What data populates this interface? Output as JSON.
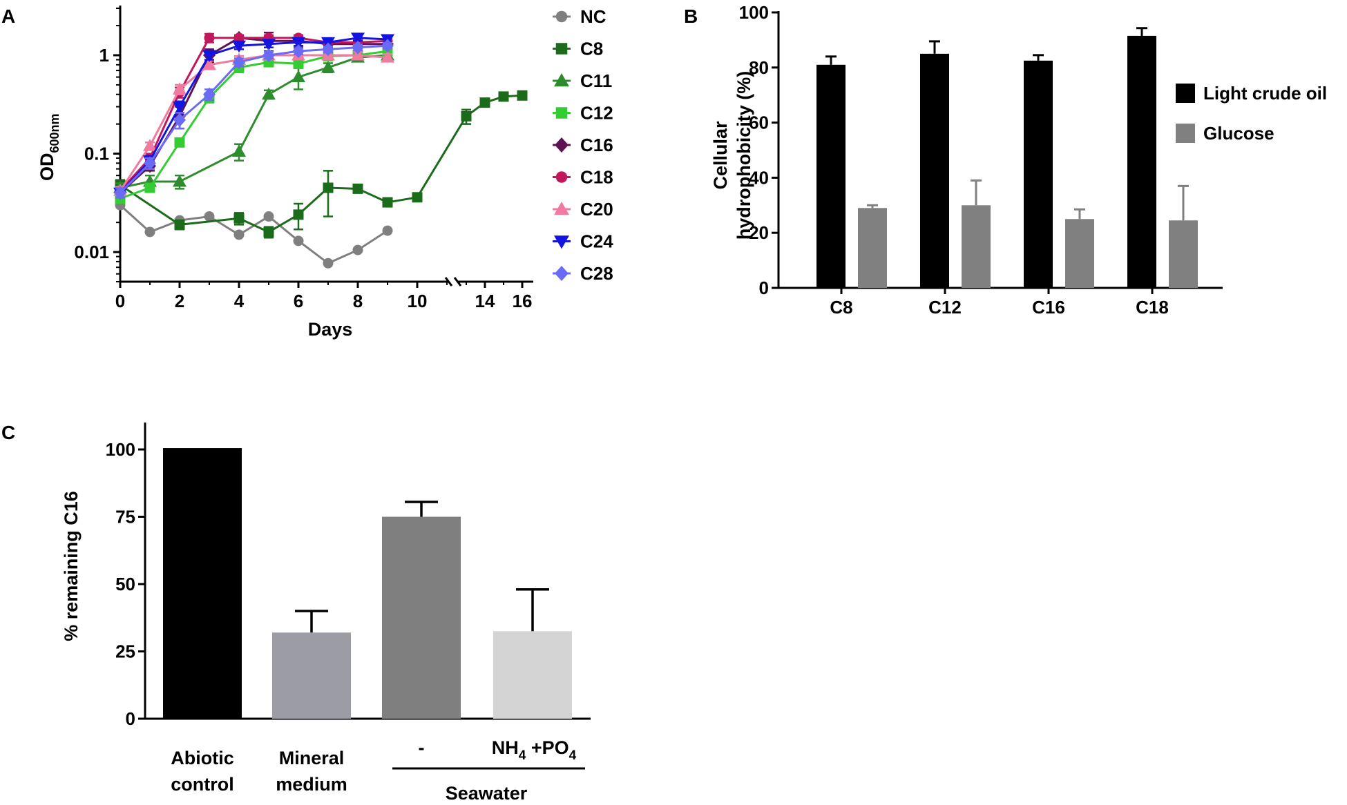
{
  "figure": {
    "panels": [
      "A",
      "B",
      "C"
    ]
  },
  "chart_data": [
    {
      "panel": "A",
      "type": "line",
      "yscale": "log",
      "ylabel": "OD",
      "ylabel_sub": "600nm",
      "xlabel": "Days",
      "ylim": [
        0.005,
        3.2
      ],
      "yticks": [
        0.01,
        0.1,
        1
      ],
      "ytick_labels": [
        "0.01",
        "0.1",
        "1"
      ],
      "x_ticks_left": [
        0,
        2,
        4,
        6,
        8,
        10
      ],
      "x_ticks_right": [
        14,
        16
      ],
      "x_break": [
        10.8,
        12.5
      ],
      "series": [
        {
          "name": "NC",
          "color": "#7f7f7f",
          "marker": "circle",
          "x": [
            0,
            1,
            2,
            3,
            4,
            5,
            6,
            7,
            8,
            9
          ],
          "y": [
            0.03,
            0.016,
            0.021,
            0.023,
            0.015,
            0.023,
            0.013,
            0.0077,
            0.0105,
            0.0165
          ],
          "err": [
            0,
            0,
            0,
            0,
            0,
            0,
            0,
            0,
            0,
            0
          ]
        },
        {
          "name": "C8",
          "color": "#1a6b1a",
          "marker": "square",
          "x": [
            0,
            2,
            4,
            5,
            6,
            7,
            8,
            9,
            10,
            13,
            14,
            15,
            16
          ],
          "y": [
            0.048,
            0.019,
            0.022,
            0.016,
            0.024,
            0.045,
            0.044,
            0.032,
            0.036,
            0.24,
            0.33,
            0.38,
            0.39
          ],
          "err": [
            0.006,
            0.002,
            0.003,
            0.002,
            0.007,
            0.022,
            0.004,
            0.002,
            0.002,
            0.04,
            0.03,
            0.02,
            0.02
          ]
        },
        {
          "name": "C11",
          "color": "#2e8b2e",
          "marker": "triangle-up",
          "x": [
            0,
            1,
            2,
            4,
            5,
            6,
            7,
            8,
            9
          ],
          "y": [
            0.045,
            0.052,
            0.052,
            0.105,
            0.4,
            0.6,
            0.75,
            0.95,
            1.0
          ],
          "err": [
            0.005,
            0.008,
            0.008,
            0.02,
            0.04,
            0.15,
            0.08,
            0.05,
            0.05
          ]
        },
        {
          "name": "C12",
          "color": "#33cc33",
          "marker": "square",
          "x": [
            0,
            1,
            2,
            3,
            4,
            5,
            6,
            7,
            8,
            9
          ],
          "y": [
            0.035,
            0.045,
            0.13,
            0.37,
            0.75,
            0.85,
            0.82,
            0.98,
            1.0,
            1.1
          ],
          "err": [
            0.003,
            0.004,
            0.01,
            0.04,
            0.08,
            0.08,
            0.08,
            0.08,
            0.08,
            0.1
          ]
        },
        {
          "name": "C16",
          "color": "#5e1452",
          "marker": "diamond",
          "x": [
            0,
            1,
            2,
            3,
            4,
            5,
            6,
            7,
            8,
            9
          ],
          "y": [
            0.04,
            0.075,
            0.24,
            1.0,
            1.5,
            1.4,
            1.4,
            1.3,
            1.3,
            1.3
          ],
          "err": [
            0.004,
            0.008,
            0.06,
            0.15,
            0.1,
            0.3,
            0.2,
            0.1,
            0.1,
            0.1
          ]
        },
        {
          "name": "C18",
          "color": "#c2185b",
          "marker": "circle",
          "x": [
            0,
            1,
            2,
            3,
            4,
            5,
            6,
            7,
            8,
            9
          ],
          "y": [
            0.042,
            0.09,
            0.42,
            1.5,
            1.5,
            1.5,
            1.5,
            1.35,
            1.35,
            1.4
          ],
          "err": [
            0.004,
            0.01,
            0.05,
            0.15,
            0.1,
            0.1,
            0.1,
            0.1,
            0.1,
            0.1
          ]
        },
        {
          "name": "C20",
          "color": "#f07aa0",
          "marker": "triangle-up",
          "x": [
            0,
            1,
            2,
            3,
            4,
            5,
            6,
            7,
            8,
            9
          ],
          "y": [
            0.042,
            0.12,
            0.45,
            0.8,
            0.9,
            1.0,
            1.0,
            1.0,
            1.0,
            0.95
          ],
          "err": [
            0.004,
            0.01,
            0.05,
            0.08,
            0.08,
            0.08,
            0.08,
            0.08,
            0.08,
            0.08
          ]
        },
        {
          "name": "C24",
          "color": "#1414e0",
          "marker": "triangle-down",
          "x": [
            0,
            1,
            2,
            3,
            4,
            5,
            6,
            7,
            8,
            9
          ],
          "y": [
            0.04,
            0.085,
            0.3,
            1.0,
            1.25,
            1.3,
            1.35,
            1.35,
            1.5,
            1.45
          ],
          "err": [
            0.004,
            0.01,
            0.04,
            0.1,
            0.1,
            0.1,
            0.1,
            0.1,
            0.1,
            0.1
          ]
        },
        {
          "name": "C28",
          "color": "#6a6af5",
          "marker": "diamond",
          "x": [
            0,
            1,
            2,
            3,
            4,
            5,
            6,
            7,
            8,
            9
          ],
          "y": [
            0.04,
            0.08,
            0.22,
            0.4,
            0.85,
            1.0,
            1.1,
            1.15,
            1.2,
            1.25
          ],
          "err": [
            0.004,
            0.01,
            0.04,
            0.05,
            0.08,
            0.08,
            0.08,
            0.08,
            0.08,
            0.08
          ]
        }
      ]
    },
    {
      "panel": "B",
      "type": "bar",
      "ylabel_lines": [
        "Cellular",
        "hydrophobicity (%)"
      ],
      "ylim": [
        0,
        100
      ],
      "yticks": [
        0,
        20,
        40,
        60,
        80,
        100
      ],
      "categories": [
        "C8",
        "C12",
        "C16",
        "C18"
      ],
      "series": [
        {
          "name": "Light crude oil",
          "color": "#000000",
          "values": [
            81,
            85,
            82.5,
            91.5
          ],
          "err": [
            3,
            4.5,
            2,
            2.8
          ]
        },
        {
          "name": "Glucose",
          "color": "#808080",
          "values": [
            29,
            30,
            25,
            24.5
          ],
          "err": [
            1,
            9,
            3.5,
            12.5
          ]
        }
      ]
    },
    {
      "panel": "C",
      "type": "bar",
      "ylabel": "% remaining C16",
      "ylim": [
        0,
        110
      ],
      "yticks": [
        0,
        25,
        50,
        75,
        100
      ],
      "categories": [
        {
          "lines": [
            "Abiotic",
            "control"
          ],
          "value": 100.5,
          "err": 0,
          "color": "#000000"
        },
        {
          "lines": [
            "Mineral",
            "medium"
          ],
          "value": 32,
          "err": 8,
          "color": "#9c9ca4"
        },
        {
          "lines": [
            "-"
          ],
          "value": 75,
          "err": 5.5,
          "color": "#7f7f7f"
        },
        {
          "lines": [
            "NH4 +PO4"
          ],
          "value": 32.5,
          "err": 15.5,
          "color": "#d4d4d4"
        }
      ],
      "group_label": "Seawater",
      "label_nh": "NH",
      "label_sub4a": "4",
      "label_po": " +PO",
      "label_sub4b": "4"
    }
  ]
}
